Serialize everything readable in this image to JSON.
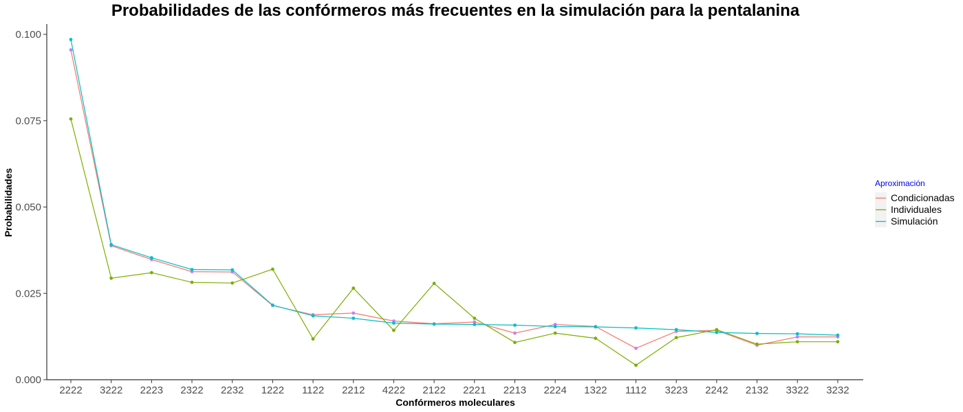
{
  "chart_data": {
    "type": "line",
    "title": "Probabilidades de las confórmeros más frecuentes en la simulación para la pentalanina",
    "xlabel": "Confórmeros moleculares",
    "ylabel": "Probabilidades",
    "ylim": [
      0,
      0.1
    ],
    "y_ticks": [
      "0.000",
      "0.025",
      "0.050",
      "0.075",
      "0.100"
    ],
    "grid": false,
    "legend": {
      "title": "Aproximación",
      "title_color": "#0000ee",
      "position": "right"
    },
    "categories": [
      "2222",
      "3222",
      "2223",
      "2322",
      "2232",
      "1222",
      "1122",
      "2212",
      "4222",
      "2122",
      "2221",
      "2213",
      "2224",
      "1322",
      "1112",
      "3223",
      "2242",
      "2132",
      "3322",
      "3232"
    ],
    "series": [
      {
        "name": "Condicionadas",
        "color": "#f8766d",
        "values": [
          0.0955,
          0.0388,
          0.0348,
          0.0313,
          0.0312,
          0.0215,
          0.0188,
          0.0193,
          0.017,
          0.0162,
          0.0167,
          0.0135,
          0.016,
          0.0154,
          0.0091,
          0.014,
          0.0143,
          0.01,
          0.0124,
          0.0124
        ]
      },
      {
        "name": "Individuales",
        "color": "#7cae00",
        "values": [
          0.0755,
          0.0294,
          0.031,
          0.0282,
          0.028,
          0.032,
          0.0118,
          0.0265,
          0.0143,
          0.0279,
          0.0178,
          0.0108,
          0.0135,
          0.012,
          0.0042,
          0.0122,
          0.0145,
          0.0103,
          0.011,
          0.011
        ]
      },
      {
        "name": "Simulación",
        "color": "#00bfc4",
        "values": [
          0.0985,
          0.0391,
          0.0353,
          0.0319,
          0.0318,
          0.0216,
          0.0185,
          0.0178,
          0.0164,
          0.0161,
          0.016,
          0.0158,
          0.0154,
          0.0153,
          0.015,
          0.0145,
          0.0137,
          0.0134,
          0.0133,
          0.0129
        ]
      }
    ],
    "extra_point_color": "#c77cff"
  }
}
